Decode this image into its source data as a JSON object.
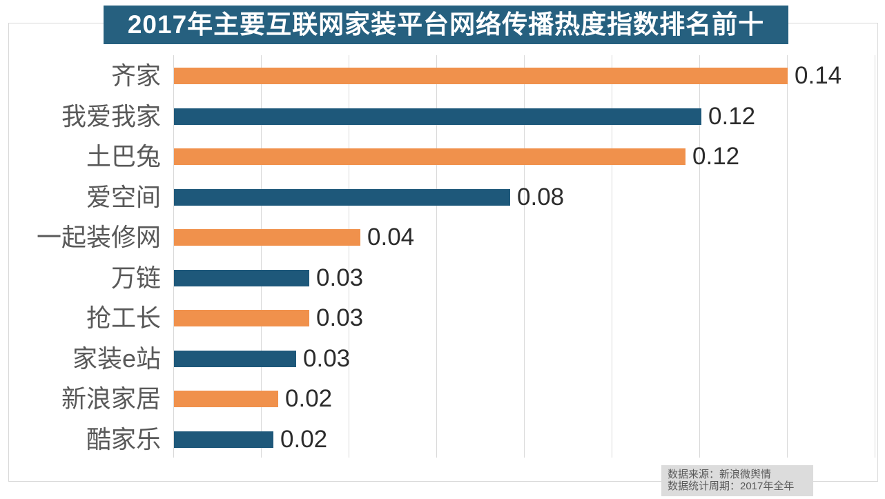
{
  "chart_data": {
    "type": "bar",
    "orientation": "horizontal",
    "title": "2017年主要互联网家装平台网络传播热度指数排名前十",
    "categories": [
      "齐家",
      "我爱我家",
      "土巴兔",
      "爱空间",
      "一起装修网",
      "万链",
      "抢工长",
      "家装e站",
      "新浪家居",
      "酷家乐"
    ],
    "values": [
      0.14,
      0.12,
      0.12,
      0.08,
      0.04,
      0.03,
      0.03,
      0.03,
      0.02,
      0.02
    ],
    "value_labels": [
      "0.14",
      "0.12",
      "0.12",
      "0.08",
      "0.04",
      "0.03",
      "0.03",
      "0.03",
      "0.02",
      "0.02"
    ],
    "bar_lengths_precise": [
      0.14,
      0.1203,
      0.1167,
      0.0767,
      0.0425,
      0.0309,
      0.0308,
      0.0279,
      0.0238,
      0.0227
    ],
    "xlim": [
      0,
      0.16
    ],
    "grid_interval": 0.02,
    "grid": true,
    "legend": "none",
    "xlabel": "",
    "ylabel": ""
  },
  "source_note": {
    "line1": "数据来源：新浪微舆情",
    "line2": "数据统计周期：2017年全年"
  },
  "colors": {
    "title_bg": "#26607F",
    "title_text": "#FFFFFF",
    "bar_orange": "#F0914C",
    "bar_blue": "#1E587A",
    "gridline": "#D9D9D9",
    "frame_border": "#D9D9D9",
    "category_label": "#595959",
    "value_label": "#2B2B2B",
    "source_bg": "#DCDCDC",
    "source_text": "#595959"
  }
}
